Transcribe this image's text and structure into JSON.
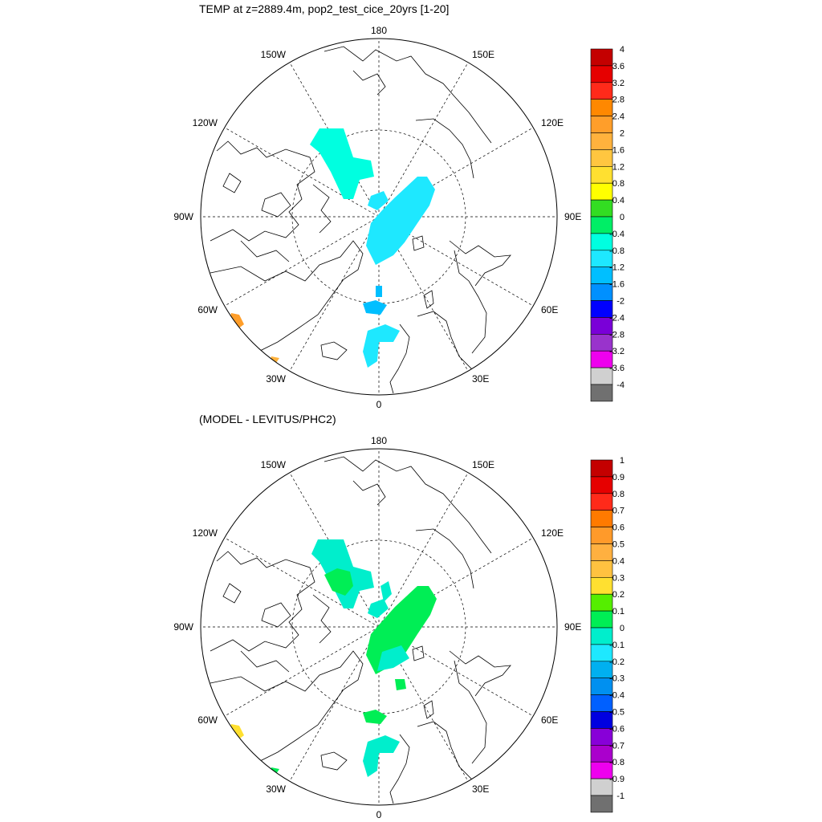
{
  "panels": [
    {
      "title": "TEMP at z=2889.4m, pop2_test_cice_20yrs [1-20]",
      "lon_labels": {
        "top": "180",
        "bottom": "0",
        "left": "90W",
        "right": "90E",
        "l150": "150W",
        "l120": "120W",
        "l60": "60W",
        "l30": "30W",
        "r150": "150E",
        "r120": "120E",
        "r60": "60E",
        "r30": "30E"
      },
      "colorbar": {
        "labels": [
          "4",
          "3.6",
          "3.2",
          "2.8",
          "2.4",
          "2",
          "1.6",
          "1.2",
          "0.8",
          "0.4",
          "0",
          "-0.4",
          "-0.8",
          "-1.2",
          "-1.6",
          "-2",
          "-2.4",
          "-2.8",
          "-3.2",
          "-3.6",
          "-4"
        ],
        "colors": [
          "#c40000",
          "#e60000",
          "#ff2a1a",
          "#ff8800",
          "#ff9e2a",
          "#ffb23d",
          "#ffc640",
          "#ffe030",
          "#ffff00",
          "#33dd22",
          "#00ee66",
          "#00ffe0",
          "#1ee8ff",
          "#00bfff",
          "#0090ff",
          "#0000ff",
          "#7a00d8",
          "#9933cc",
          "#ee00ee",
          "#d0d0d0",
          "#707070"
        ]
      }
    },
    {
      "title": "(MODEL - LEVITUS/PHC2)",
      "lon_labels": {
        "top": "180",
        "bottom": "0",
        "left": "90W",
        "right": "90E",
        "l150": "150W",
        "l120": "120W",
        "l60": "60W",
        "l30": "30W",
        "r150": "150E",
        "r120": "120E",
        "r60": "60E",
        "r30": "30E"
      },
      "colorbar": {
        "labels": [
          "1",
          "0.9",
          "0.8",
          "0.7",
          "0.6",
          "0.5",
          "0.4",
          "0.3",
          "0.2",
          "0.1",
          "0",
          "-0.1",
          "-0.2",
          "-0.3",
          "-0.4",
          "-0.5",
          "-0.6",
          "-0.7",
          "-0.8",
          "-0.9",
          "-1"
        ],
        "colors": [
          "#c40000",
          "#e60000",
          "#ff2a1a",
          "#ff7a00",
          "#ff9a2a",
          "#ffb040",
          "#ffc240",
          "#ffe030",
          "#55ee00",
          "#00ee55",
          "#00eecc",
          "#1ee8ff",
          "#00b0f0",
          "#0090f0",
          "#0060ff",
          "#0000e0",
          "#8800d8",
          "#aa00cc",
          "#ee00ee",
          "#d0d0d0",
          "#707070"
        ]
      }
    }
  ]
}
